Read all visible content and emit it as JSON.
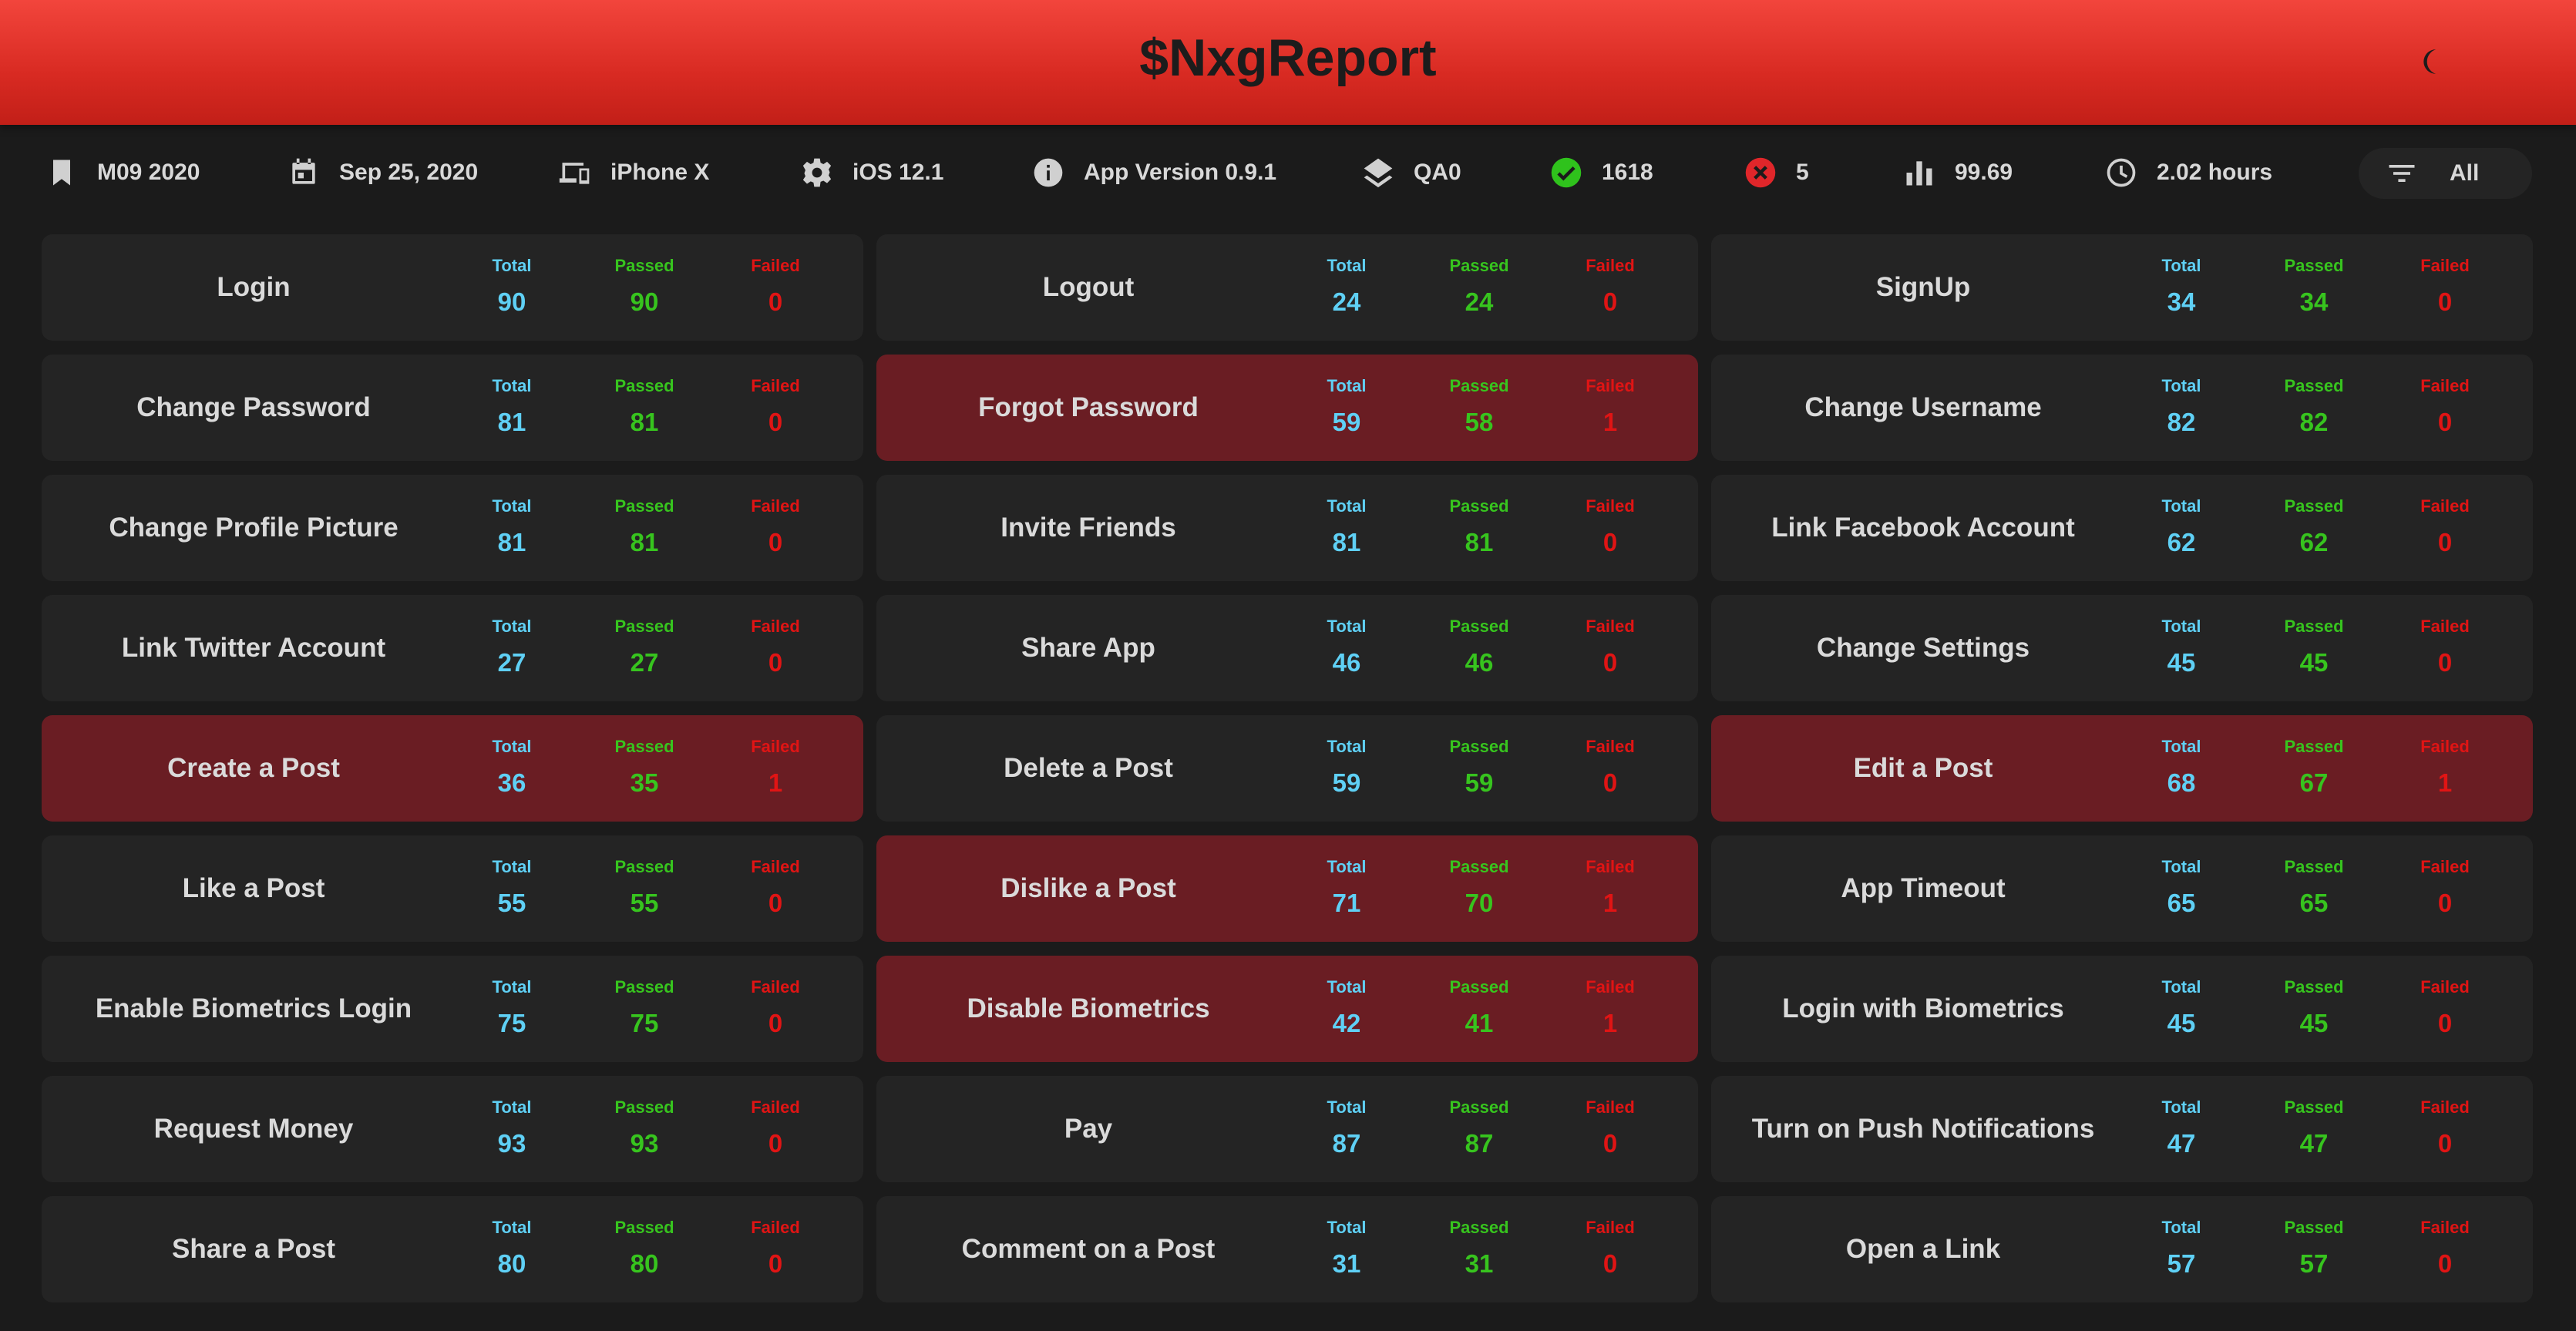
{
  "header": {
    "title": "$NxgReport",
    "theme_icon": "moon-icon"
  },
  "info": [
    {
      "icon": "bookmark-icon",
      "value": "M09 2020"
    },
    {
      "icon": "calendar-icon",
      "value": "Sep 25, 2020"
    },
    {
      "icon": "devices-icon",
      "value": "iPhone X"
    },
    {
      "icon": "gear-icon",
      "value": "iOS 12.1"
    },
    {
      "icon": "info-icon",
      "value": "App Version 0.9.1"
    },
    {
      "icon": "layers-icon",
      "value": "QA0"
    },
    {
      "icon": "check-circle-icon",
      "value": "1618"
    },
    {
      "icon": "error-circle-icon",
      "value": "5"
    },
    {
      "icon": "bar-chart-icon",
      "value": "99.69"
    },
    {
      "icon": "clock-icon",
      "value": "2.02 hours"
    }
  ],
  "filter": {
    "icon": "filter-icon",
    "label": "All"
  },
  "labels": {
    "total": "Total",
    "passed": "Passed",
    "failed": "Failed"
  },
  "colors": {
    "header": "#e0332b",
    "card": "#242424",
    "card_failed": "#6a1d23",
    "total": "#5fd0f5",
    "passed": "#37c41e",
    "failed": "#e01414",
    "check": "#2fc21c",
    "error": "#e0262a"
  },
  "features": [
    {
      "name": "Login",
      "total": "90",
      "passed": "90",
      "failed": "0"
    },
    {
      "name": "Logout",
      "total": "24",
      "passed": "24",
      "failed": "0"
    },
    {
      "name": "SignUp",
      "total": "34",
      "passed": "34",
      "failed": "0"
    },
    {
      "name": "Change Password",
      "total": "81",
      "passed": "81",
      "failed": "0"
    },
    {
      "name": "Forgot Password",
      "total": "59",
      "passed": "58",
      "failed": "1"
    },
    {
      "name": "Change Username",
      "total": "82",
      "passed": "82",
      "failed": "0"
    },
    {
      "name": "Change Profile Picture",
      "total": "81",
      "passed": "81",
      "failed": "0"
    },
    {
      "name": "Invite Friends",
      "total": "81",
      "passed": "81",
      "failed": "0"
    },
    {
      "name": "Link Facebook Account",
      "total": "62",
      "passed": "62",
      "failed": "0"
    },
    {
      "name": "Link Twitter Account",
      "total": "27",
      "passed": "27",
      "failed": "0"
    },
    {
      "name": "Share App",
      "total": "46",
      "passed": "46",
      "failed": "0"
    },
    {
      "name": "Change Settings",
      "total": "45",
      "passed": "45",
      "failed": "0"
    },
    {
      "name": "Create a Post",
      "total": "36",
      "passed": "35",
      "failed": "1"
    },
    {
      "name": "Delete a Post",
      "total": "59",
      "passed": "59",
      "failed": "0"
    },
    {
      "name": "Edit a Post",
      "total": "68",
      "passed": "67",
      "failed": "1"
    },
    {
      "name": "Like a Post",
      "total": "55",
      "passed": "55",
      "failed": "0"
    },
    {
      "name": "Dislike a Post",
      "total": "71",
      "passed": "70",
      "failed": "1"
    },
    {
      "name": "App Timeout",
      "total": "65",
      "passed": "65",
      "failed": "0"
    },
    {
      "name": "Enable Biometrics Login",
      "total": "75",
      "passed": "75",
      "failed": "0"
    },
    {
      "name": "Disable Biometrics",
      "total": "42",
      "passed": "41",
      "failed": "1"
    },
    {
      "name": "Login with Biometrics",
      "total": "45",
      "passed": "45",
      "failed": "0"
    },
    {
      "name": "Request Money",
      "total": "93",
      "passed": "93",
      "failed": "0"
    },
    {
      "name": "Pay",
      "total": "87",
      "passed": "87",
      "failed": "0"
    },
    {
      "name": "Turn on Push Notifications",
      "total": "47",
      "passed": "47",
      "failed": "0"
    },
    {
      "name": "Share a Post",
      "total": "80",
      "passed": "80",
      "failed": "0"
    },
    {
      "name": "Comment on a Post",
      "total": "31",
      "passed": "31",
      "failed": "0"
    },
    {
      "name": "Open a Link",
      "total": "57",
      "passed": "57",
      "failed": "0"
    }
  ]
}
